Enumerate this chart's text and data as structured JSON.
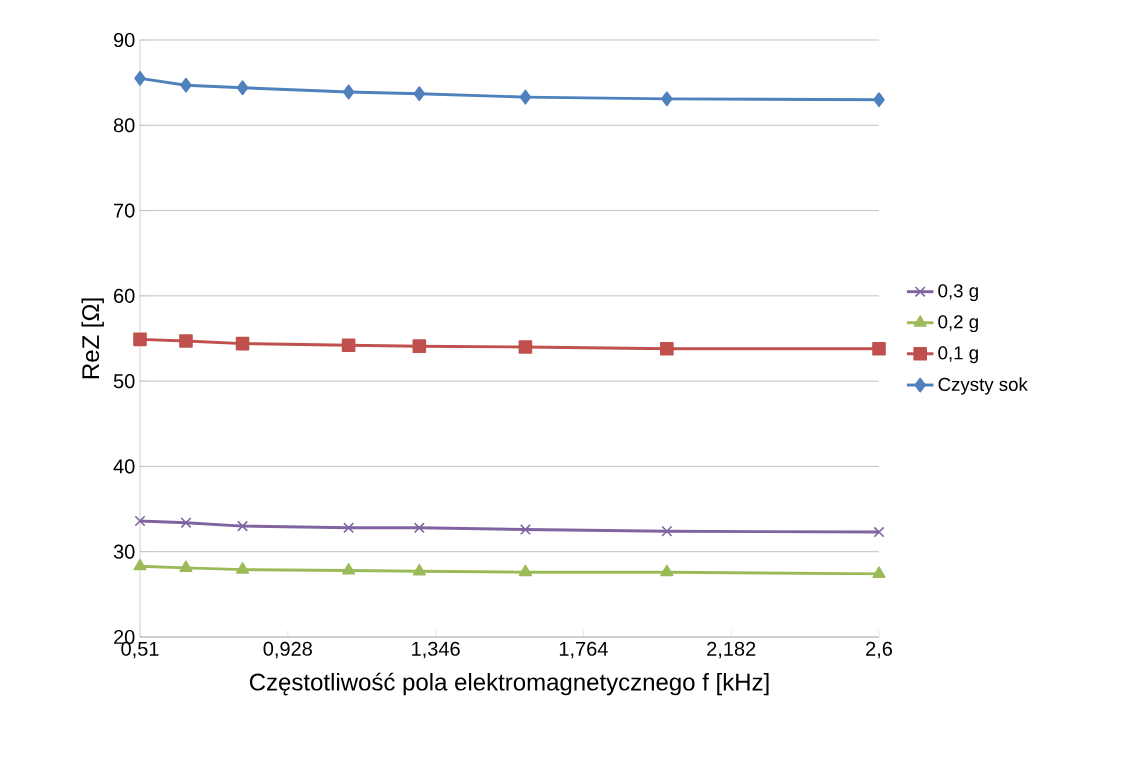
{
  "chart_data": {
    "type": "line",
    "xlabel": "Częstotliwość pola elektromagnetycznego f [kHz]",
    "ylabel": "ReZ [Ω]",
    "x": [
      0.51,
      0.64,
      0.8,
      1.1,
      1.3,
      1.6,
      2.0,
      2.6
    ],
    "series": [
      {
        "name": "0,3 g",
        "color": "#8064a2",
        "marker": "cross",
        "values": [
          33.6,
          33.4,
          33.0,
          32.8,
          32.8,
          32.6,
          32.4,
          32.3
        ]
      },
      {
        "name": "0,2 g",
        "color": "#9bbb59",
        "marker": "triangle",
        "values": [
          28.3,
          28.1,
          27.9,
          27.8,
          27.7,
          27.6,
          27.6,
          27.4
        ]
      },
      {
        "name": "0,1 g",
        "color": "#c0504d",
        "marker": "square",
        "values": [
          54.9,
          54.7,
          54.4,
          54.2,
          54.1,
          54.0,
          53.8,
          53.8
        ]
      },
      {
        "name": "Czysty sok",
        "color": "#4f81bd",
        "marker": "diamond",
        "values": [
          85.5,
          84.7,
          84.4,
          83.9,
          83.7,
          83.3,
          83.1,
          83.0
        ]
      }
    ],
    "xlim": [
      0.51,
      2.6
    ],
    "xticks": [
      {
        "value": 0.51,
        "label": "0,51"
      },
      {
        "value": 0.928,
        "label": "0,928"
      },
      {
        "value": 1.346,
        "label": "1,346"
      },
      {
        "value": 1.764,
        "label": "1,764"
      },
      {
        "value": 2.182,
        "label": "2,182"
      },
      {
        "value": 2.6,
        "label": "2,6"
      }
    ],
    "ylim": [
      20,
      90
    ],
    "yticks": [
      20,
      30,
      40,
      50,
      60,
      70,
      80,
      90
    ],
    "grid": "y",
    "legend": "right",
    "line_style": "solid"
  }
}
